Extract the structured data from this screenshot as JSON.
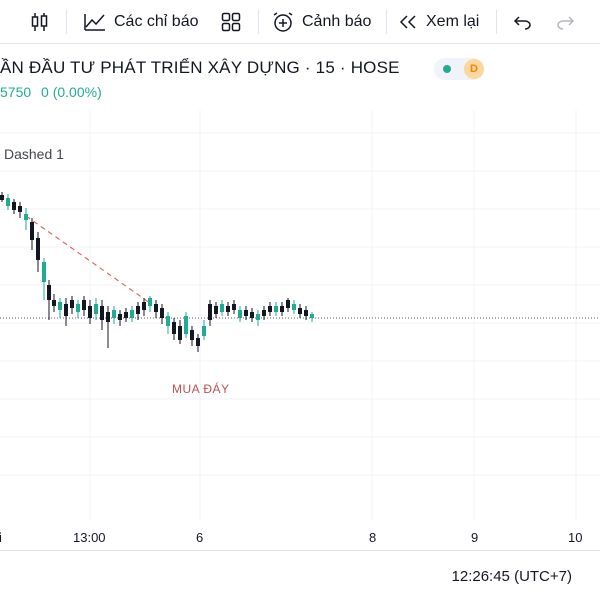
{
  "toolbar": {
    "indicators_label": "Các chỉ báo",
    "alerts_label": "Cảnh báo",
    "replay_label": "Xem lại"
  },
  "symbol": {
    "title": "ẦN ĐẦU TƯ PHÁT TRIỂN XÂY DỰNG · 15 · HOSE",
    "badge": "D",
    "price": "5750",
    "change": "0 (0.00%)"
  },
  "drawing": {
    "dashed_label": "Dashed 1",
    "annotation": "MUA ĐÁY"
  },
  "xaxis": {
    "labels": [
      "i",
      "13:00",
      "6",
      "8",
      "9",
      "10"
    ]
  },
  "footer": {
    "clock": "12:26:45 (UTC+7)"
  },
  "colors": {
    "up": "#22ab94",
    "down": "#131722",
    "annotation": "#c0504d"
  }
}
